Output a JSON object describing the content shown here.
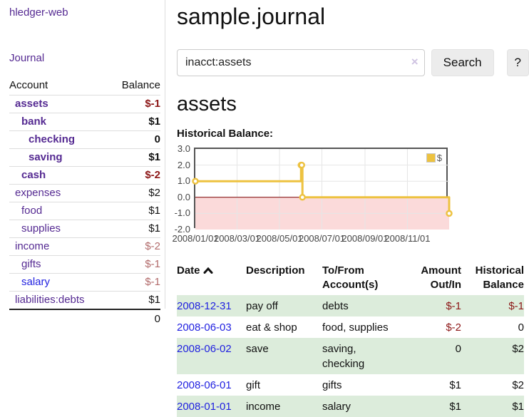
{
  "colors": {
    "link_purple": "#552a92",
    "link_blue": "#1f1fe0",
    "negative": "#8c1616",
    "negative_dim": "#b26b6b",
    "row_green": "#dcecdb",
    "series_yellow": "#EDC240"
  },
  "sidebar": {
    "app_title": "hledger-web",
    "journal_link": "Journal",
    "accounts_table": {
      "headers": {
        "account": "Account",
        "balance": "Balance"
      },
      "rows": [
        {
          "label": "assets",
          "depth": 1,
          "in_view": true,
          "link_color": "purple",
          "balance": "$-1",
          "balance_style": "negative-strong"
        },
        {
          "label": "bank",
          "depth": 2,
          "in_view": true,
          "link_color": "purple",
          "balance": "$1",
          "balance_style": "strong"
        },
        {
          "label": "checking",
          "depth": 3,
          "in_view": true,
          "link_color": "purple",
          "balance": "0",
          "balance_style": "strong"
        },
        {
          "label": "saving",
          "depth": 3,
          "in_view": true,
          "link_color": "purple",
          "balance": "$1",
          "balance_style": "strong"
        },
        {
          "label": "cash",
          "depth": 2,
          "in_view": true,
          "link_color": "purple",
          "balance": "$-2",
          "balance_style": "negative-strong"
        },
        {
          "label": "expenses",
          "depth": 1,
          "in_view": false,
          "link_color": "purple",
          "balance": "$2",
          "balance_style": "plain"
        },
        {
          "label": "food",
          "depth": 2,
          "in_view": false,
          "link_color": "purple",
          "balance": "$1",
          "balance_style": "plain"
        },
        {
          "label": "supplies",
          "depth": 2,
          "in_view": false,
          "link_color": "purple",
          "balance": "$1",
          "balance_style": "plain"
        },
        {
          "label": "income",
          "depth": 1,
          "in_view": false,
          "link_color": "purple",
          "balance": "$-2",
          "balance_style": "negative-dim"
        },
        {
          "label": "gifts",
          "depth": 2,
          "in_view": false,
          "link_color": "purple",
          "balance": "$-1",
          "balance_style": "negative-dim"
        },
        {
          "label": "salary",
          "depth": 2,
          "in_view": false,
          "link_color": "blue",
          "balance": "$-1",
          "balance_style": "negative-dim"
        },
        {
          "label": "liabilities:debts",
          "depth": 1,
          "in_view": false,
          "link_color": "purple",
          "balance": "$1",
          "balance_style": "plain"
        }
      ],
      "total": "0"
    }
  },
  "header": {
    "title": "sample.journal"
  },
  "search": {
    "query": "inacct:assets",
    "clear_icon": "×",
    "button_label": "Search",
    "help_label": "?"
  },
  "account_page": {
    "heading": "assets",
    "chart_label": "Historical Balance:"
  },
  "chart_data": {
    "type": "line",
    "title": "Historical Balance",
    "steps": true,
    "ylim": [
      -2,
      3
    ],
    "x_range_days": [
      0,
      365
    ],
    "y_ticks": [
      "3.0",
      "2.0",
      "1.0",
      "0.0",
      "-1.0",
      "-2.0"
    ],
    "x_ticks": [
      {
        "label": "2008/01/01",
        "day": 0
      },
      {
        "label": "2008/03/01",
        "day": 60
      },
      {
        "label": "2008/05/01",
        "day": 121
      },
      {
        "label": "2008/07/01",
        "day": 182
      },
      {
        "label": "2008/09/01",
        "day": 244
      },
      {
        "label": "2008/11/01",
        "day": 305
      }
    ],
    "series": [
      {
        "name": "$",
        "color": "#EDC240",
        "points": [
          {
            "date": "2008-01-01",
            "day": 0,
            "value": 1
          },
          {
            "date": "2008-06-01",
            "day": 152,
            "value": 2
          },
          {
            "date": "2008-06-02",
            "day": 153,
            "value": 2
          },
          {
            "date": "2008-06-03",
            "day": 154,
            "value": 0
          },
          {
            "date": "2008-12-31",
            "day": 365,
            "value": -1
          }
        ]
      }
    ],
    "negative_region_color": "#fbdada",
    "zero_line_color": "#800000",
    "grid_color": "#e6e6e6",
    "legend": {
      "label": "$",
      "position": "top-right"
    }
  },
  "register": {
    "columns": [
      "Date",
      "Description",
      "To/From Account(s)",
      "Amount Out/In",
      "Historical Balance"
    ],
    "sort": {
      "column": "Date",
      "direction": "ascending"
    },
    "rows": [
      {
        "date": "2008-12-31",
        "description": "pay off",
        "accounts": "debts",
        "amount": "$-1",
        "amount_negative": true,
        "balance": "$-1",
        "balance_negative": true
      },
      {
        "date": "2008-06-03",
        "description": "eat & shop",
        "accounts": "food, supplies",
        "amount": "$-2",
        "amount_negative": true,
        "balance": "0",
        "balance_negative": false
      },
      {
        "date": "2008-06-02",
        "description": "save",
        "accounts": "saving, checking",
        "amount": "0",
        "amount_negative": false,
        "balance": "$2",
        "balance_negative": false
      },
      {
        "date": "2008-06-01",
        "description": "gift",
        "accounts": "gifts",
        "amount": "$1",
        "amount_negative": false,
        "balance": "$2",
        "balance_negative": false
      },
      {
        "date": "2008-01-01",
        "description": "income",
        "accounts": "salary",
        "amount": "$1",
        "amount_negative": false,
        "balance": "$1",
        "balance_negative": false
      }
    ]
  }
}
